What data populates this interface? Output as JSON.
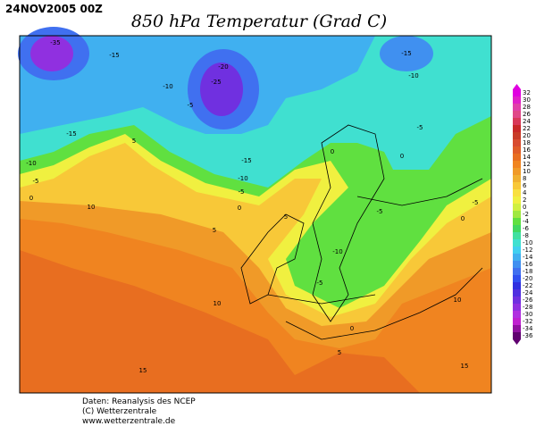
{
  "header": {
    "date": "24NOV2005 00Z",
    "title": "850 hPa Temperatur (Grad C)"
  },
  "colorbar": {
    "stops": [
      {
        "label": "32",
        "color": "#e000e0"
      },
      {
        "label": "30",
        "color": "#e020c8"
      },
      {
        "label": "28",
        "color": "#e040a8"
      },
      {
        "label": "26",
        "color": "#e04888"
      },
      {
        "label": "24",
        "color": "#d83858"
      },
      {
        "label": "22",
        "color": "#c82828"
      },
      {
        "label": "20",
        "color": "#c83c28"
      },
      {
        "label": "18",
        "color": "#d84c30"
      },
      {
        "label": "16",
        "color": "#e05c28"
      },
      {
        "label": "14",
        "color": "#e86e20"
      },
      {
        "label": "12",
        "color": "#f08420"
      },
      {
        "label": "10",
        "color": "#f09a28"
      },
      {
        "label": "8",
        "color": "#f0b030"
      },
      {
        "label": "6",
        "color": "#f8c838"
      },
      {
        "label": "4",
        "color": "#f8e040"
      },
      {
        "label": "2",
        "color": "#f0f040"
      },
      {
        "label": "0",
        "color": "#d0f040"
      },
      {
        "label": "-2",
        "color": "#a0e840"
      },
      {
        "label": "-4",
        "color": "#60e040"
      },
      {
        "label": "-6",
        "color": "#40d860"
      },
      {
        "label": "-8",
        "color": "#40e0a0"
      },
      {
        "label": "-10",
        "color": "#40e0d0"
      },
      {
        "label": "-12",
        "color": "#40d0f0"
      },
      {
        "label": "-14",
        "color": "#40b0f0"
      },
      {
        "label": "-16",
        "color": "#4090f0"
      },
      {
        "label": "-18",
        "color": "#4070f0"
      },
      {
        "label": "-20",
        "color": "#3050f0"
      },
      {
        "label": "-22",
        "color": "#3030e0"
      },
      {
        "label": "-24",
        "color": "#5030e0"
      },
      {
        "label": "-26",
        "color": "#7030e0"
      },
      {
        "label": "-28",
        "color": "#9030e0"
      },
      {
        "label": "-30",
        "color": "#b030e0"
      },
      {
        "label": "-32",
        "color": "#c020d0"
      },
      {
        "label": "-34",
        "color": "#9010a0"
      },
      {
        "label": "-36",
        "color": "#600070"
      }
    ]
  },
  "map": {
    "contour_labels": [
      "-35",
      "-15",
      "-10",
      "-20",
      "-25",
      "-5",
      "-15",
      "-10",
      "-5",
      "0",
      "5",
      "10",
      "-15",
      "-10",
      "-5",
      "0",
      "-15",
      "-10",
      "-5",
      "0",
      "5",
      "0",
      "-5",
      "-10",
      "-5",
      "-5",
      "0",
      "5",
      "10",
      "15",
      "10",
      "15",
      "5",
      "0"
    ]
  },
  "footer": {
    "lines": [
      "Daten: Reanalysis des NCEP",
      "(C) Wetterzentrale",
      "www.wetterzentrale.de"
    ]
  }
}
